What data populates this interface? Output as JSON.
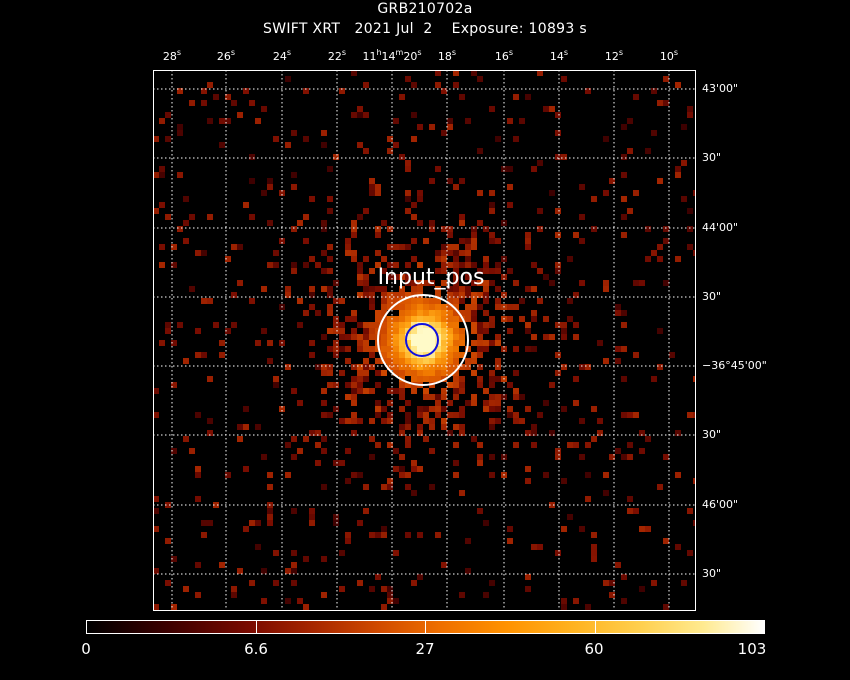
{
  "header": {
    "title": "GRB210702a",
    "subtitle": "SWIFT XRT   2021 Jul  2    Exposure: 10893 s"
  },
  "image": {
    "description_of_source": "bright X-ray point source near field center",
    "region_label": "Input_pos",
    "colors": {
      "background": "#000000",
      "grid": "#ffffff",
      "region_outer": "#ffffff",
      "region_inner": "#1010e0"
    }
  },
  "axes": {
    "ra_ticks": [
      {
        "label": "28",
        "unit": "s"
      },
      {
        "label": "26",
        "unit": "s"
      },
      {
        "label": "24",
        "unit": "s"
      },
      {
        "label": "22",
        "unit": "s"
      },
      {
        "label": "11",
        "unit": "h",
        "label2": "14",
        "unit2": "m",
        "label3": "20",
        "unit3": "s"
      },
      {
        "label": "18",
        "unit": "s"
      },
      {
        "label": "16",
        "unit": "s"
      },
      {
        "label": "14",
        "unit": "s"
      },
      {
        "label": "12",
        "unit": "s"
      },
      {
        "label": "10",
        "unit": "s"
      }
    ],
    "dec_ticks": [
      "43'00\"",
      "30\"",
      "44'00\"",
      "30\"",
      "−36°45'00\"",
      "30\"",
      "46'00\"",
      "30\""
    ]
  },
  "colorbar": {
    "labels": [
      "0",
      "6.6",
      "27",
      "60",
      "103"
    ],
    "scale": "log"
  }
}
